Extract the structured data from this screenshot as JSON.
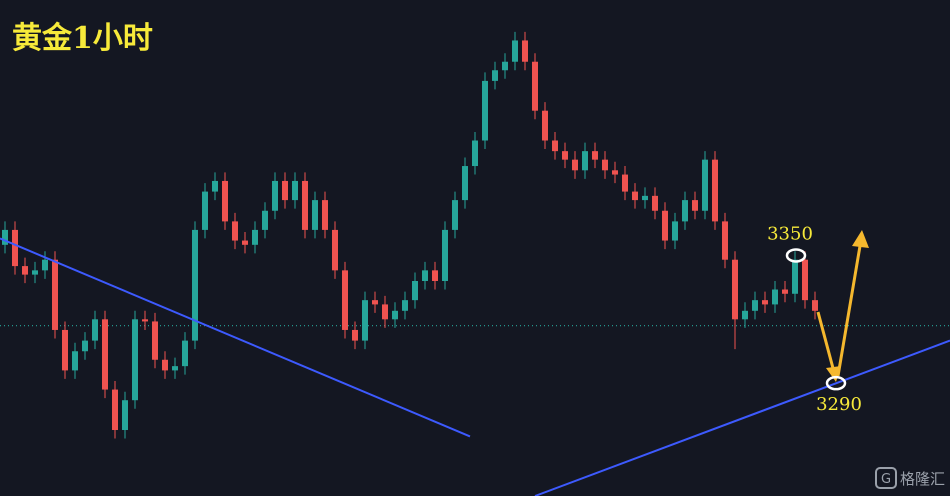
{
  "chart_data": {
    "type": "candlestick",
    "title": "黄金1小时",
    "up_color": "#26a69a",
    "down_color": "#ef5350",
    "xlim": [
      -0.5,
      94.5
    ],
    "ylim": [
      3237,
      3470
    ],
    "ohlc": [
      [
        3355,
        3366,
        3351,
        3362
      ],
      [
        3362,
        3366,
        3341,
        3345
      ],
      [
        3345,
        3349,
        3337,
        3341
      ],
      [
        3341,
        3347,
        3337,
        3343
      ],
      [
        3343,
        3352,
        3339,
        3348
      ],
      [
        3348,
        3352,
        3311,
        3315
      ],
      [
        3315,
        3319,
        3292,
        3296
      ],
      [
        3296,
        3309,
        3292,
        3305
      ],
      [
        3305,
        3314,
        3301,
        3310
      ],
      [
        3310,
        3324,
        3306,
        3320
      ],
      [
        3320,
        3324,
        3283,
        3287
      ],
      [
        3287,
        3291,
        3264,
        3268
      ],
      [
        3268,
        3286,
        3264,
        3282
      ],
      [
        3282,
        3324,
        3278,
        3320
      ],
      [
        3320,
        3324,
        3315,
        3319
      ],
      [
        3319,
        3323,
        3297,
        3301
      ],
      [
        3301,
        3305,
        3292,
        3296
      ],
      [
        3296,
        3302,
        3292,
        3298
      ],
      [
        3298,
        3314,
        3294,
        3310
      ],
      [
        3310,
        3366,
        3306,
        3362
      ],
      [
        3362,
        3384,
        3358,
        3380
      ],
      [
        3380,
        3389,
        3376,
        3385
      ],
      [
        3385,
        3389,
        3362,
        3366
      ],
      [
        3366,
        3370,
        3353,
        3357
      ],
      [
        3357,
        3361,
        3351,
        3355
      ],
      [
        3355,
        3366,
        3351,
        3362
      ],
      [
        3362,
        3375,
        3358,
        3371
      ],
      [
        3371,
        3389,
        3367,
        3385
      ],
      [
        3385,
        3389,
        3372,
        3376
      ],
      [
        3376,
        3389,
        3372,
        3385
      ],
      [
        3385,
        3389,
        3358,
        3362
      ],
      [
        3362,
        3380,
        3358,
        3376
      ],
      [
        3376,
        3380,
        3358,
        3362
      ],
      [
        3362,
        3366,
        3339,
        3343
      ],
      [
        3343,
        3347,
        3311,
        3315
      ],
      [
        3315,
        3319,
        3306,
        3310
      ],
      [
        3310,
        3333,
        3306,
        3329
      ],
      [
        3329,
        3333,
        3323,
        3327
      ],
      [
        3327,
        3331,
        3316,
        3320
      ],
      [
        3320,
        3328,
        3316,
        3324
      ],
      [
        3324,
        3333,
        3320,
        3329
      ],
      [
        3329,
        3342,
        3325,
        3338
      ],
      [
        3338,
        3347,
        3334,
        3343
      ],
      [
        3343,
        3347,
        3334,
        3338
      ],
      [
        3338,
        3366,
        3334,
        3362
      ],
      [
        3362,
        3380,
        3358,
        3376
      ],
      [
        3376,
        3396,
        3372,
        3392
      ],
      [
        3392,
        3408,
        3388,
        3404
      ],
      [
        3404,
        3436,
        3400,
        3432
      ],
      [
        3432,
        3441,
        3428,
        3437
      ],
      [
        3437,
        3445,
        3433,
        3441
      ],
      [
        3441,
        3455,
        3437,
        3451
      ],
      [
        3451,
        3455,
        3437,
        3441
      ],
      [
        3441,
        3445,
        3414,
        3418
      ],
      [
        3418,
        3422,
        3400,
        3404
      ],
      [
        3404,
        3408,
        3395,
        3399
      ],
      [
        3399,
        3403,
        3391,
        3395
      ],
      [
        3395,
        3399,
        3386,
        3390
      ],
      [
        3390,
        3403,
        3386,
        3399
      ],
      [
        3399,
        3403,
        3391,
        3395
      ],
      [
        3395,
        3399,
        3386,
        3390
      ],
      [
        3390,
        3394,
        3384,
        3388
      ],
      [
        3388,
        3392,
        3376,
        3380
      ],
      [
        3380,
        3384,
        3372,
        3376
      ],
      [
        3376,
        3382,
        3372,
        3378
      ],
      [
        3378,
        3382,
        3367,
        3371
      ],
      [
        3371,
        3375,
        3353,
        3357
      ],
      [
        3357,
        3370,
        3353,
        3366
      ],
      [
        3366,
        3380,
        3362,
        3376
      ],
      [
        3376,
        3380,
        3367,
        3371
      ],
      [
        3371,
        3399,
        3367,
        3395
      ],
      [
        3395,
        3399,
        3362,
        3366
      ],
      [
        3366,
        3370,
        3344,
        3348
      ],
      [
        3348,
        3352,
        3306,
        3320
      ],
      [
        3320,
        3328,
        3316,
        3324
      ],
      [
        3324,
        3333,
        3320,
        3329
      ],
      [
        3329,
        3333,
        3323,
        3327
      ],
      [
        3327,
        3338,
        3323,
        3334
      ],
      [
        3334,
        3338,
        3328,
        3332
      ],
      [
        3332,
        3352,
        3328,
        3348
      ],
      [
        3348,
        3352,
        3325,
        3329
      ],
      [
        3329,
        3333,
        3320,
        3324
      ]
    ],
    "price_line": 3317,
    "price_line_color": "#26a69a",
    "trendline_color": "#3d5afe",
    "trendlines": [
      {
        "x": [
          -0.5,
          46.5
        ],
        "y": [
          3358,
          3265
        ]
      },
      {
        "x": [
          53,
          94.5
        ],
        "y": [
          3237,
          3310
        ]
      }
    ],
    "levels": [
      3350,
      3290
    ],
    "watermark": "格隆汇"
  }
}
